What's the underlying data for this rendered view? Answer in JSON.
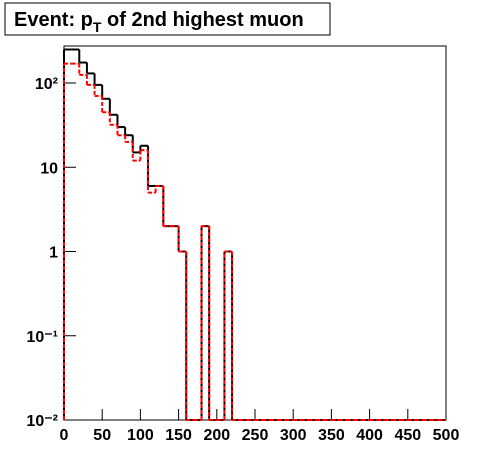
{
  "chart_data": {
    "type": "histogram",
    "title": "Event: pT of 2nd highest muon",
    "bins": [
      0,
      10,
      20,
      30,
      40,
      50,
      60,
      70,
      80,
      90,
      100,
      110,
      120,
      130,
      140,
      150,
      160,
      170,
      180,
      190,
      200,
      210,
      220,
      230,
      240,
      250,
      260,
      270,
      280,
      290,
      300,
      310,
      320,
      330,
      340,
      350,
      360,
      370,
      380,
      390,
      400,
      410,
      420,
      430,
      440,
      450,
      460,
      470,
      480,
      490,
      500
    ],
    "series": [
      {
        "color": "#000000",
        "values": [
          250,
          250,
          175,
          130,
          95,
          65,
          42,
          30,
          24,
          15,
          18,
          6,
          6,
          2,
          2,
          1,
          0,
          0,
          2,
          0,
          0,
          1,
          0,
          0,
          0,
          0,
          0,
          0,
          0,
          0,
          0,
          0,
          0,
          0,
          0,
          0,
          0,
          0,
          0,
          0,
          0,
          0,
          0,
          0,
          0,
          0,
          0,
          0,
          0,
          0
        ]
      },
      {
        "color": "#ff0000",
        "values": [
          170,
          170,
          125,
          95,
          70,
          45,
          32,
          24,
          20,
          12,
          16,
          5,
          6,
          2,
          2,
          1,
          0,
          0,
          2,
          0,
          0,
          1,
          0,
          0,
          0,
          0,
          0,
          0,
          0,
          0,
          0,
          0,
          0,
          0,
          0,
          0,
          0,
          0,
          0,
          0,
          0,
          0,
          0,
          0,
          0,
          0,
          0,
          0,
          0,
          0
        ]
      }
    ],
    "xlim": [
      0,
      500
    ],
    "xticks": [
      0,
      50,
      100,
      150,
      200,
      250,
      300,
      350,
      400,
      450,
      500
    ],
    "ylim": [
      0.01,
      275
    ],
    "log_y": true,
    "yticks": [
      {
        "value": 0.01,
        "label": "10⁻²"
      },
      {
        "value": 0.1,
        "label": "10⁻¹"
      },
      1,
      10,
      {
        "value": 100,
        "label": "10²"
      }
    ]
  }
}
